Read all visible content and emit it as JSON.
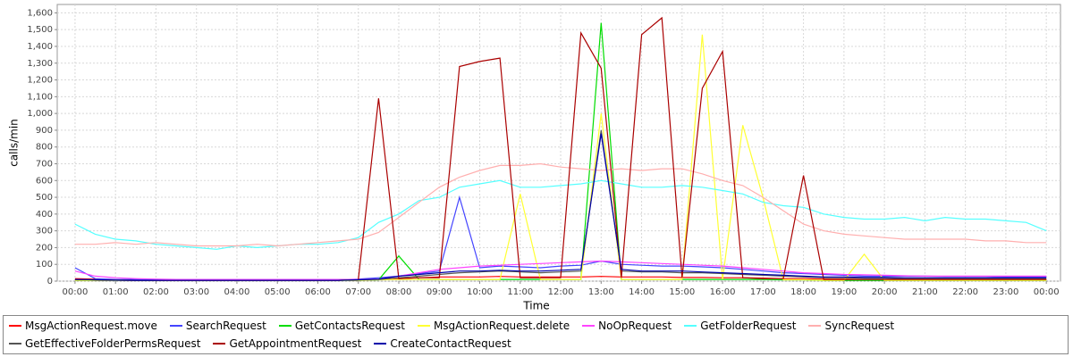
{
  "chart_data": {
    "type": "line",
    "x_label": "Time",
    "y_label": "calls/min",
    "x": [
      0,
      0.5,
      1,
      1.5,
      2,
      2.5,
      3,
      3.5,
      4,
      4.5,
      5,
      5.5,
      6,
      6.5,
      7,
      7.5,
      8,
      8.5,
      9,
      9.5,
      10,
      10.5,
      11,
      11.5,
      12,
      12.5,
      13,
      13.5,
      14,
      14.5,
      15,
      15.5,
      16,
      16.5,
      17,
      17.5,
      18,
      18.5,
      19,
      19.5,
      20,
      20.5,
      21,
      21.5,
      22,
      22.5,
      23,
      23.5,
      24
    ],
    "xlim": [
      -0.44,
      24.35
    ],
    "xticks": [
      {
        "value": 0,
        "label": "00:00"
      },
      {
        "value": 1,
        "label": "01:00"
      },
      {
        "value": 2,
        "label": "02:00"
      },
      {
        "value": 3,
        "label": "03:00"
      },
      {
        "value": 4,
        "label": "04:00"
      },
      {
        "value": 5,
        "label": "05:00"
      },
      {
        "value": 6,
        "label": "06:00"
      },
      {
        "value": 7,
        "label": "07:00"
      },
      {
        "value": 8,
        "label": "08:00"
      },
      {
        "value": 9,
        "label": "09:00"
      },
      {
        "value": 10,
        "label": "10:00"
      },
      {
        "value": 11,
        "label": "11:00"
      },
      {
        "value": 12,
        "label": "12:00"
      },
      {
        "value": 13,
        "label": "13:00"
      },
      {
        "value": 14,
        "label": "14:00"
      },
      {
        "value": 15,
        "label": "15:00"
      },
      {
        "value": 16,
        "label": "16:00"
      },
      {
        "value": 17,
        "label": "17:00"
      },
      {
        "value": 18,
        "label": "18:00"
      },
      {
        "value": 19,
        "label": "19:00"
      },
      {
        "value": 20,
        "label": "20:00"
      },
      {
        "value": 21,
        "label": "21:00"
      },
      {
        "value": 22,
        "label": "22:00"
      },
      {
        "value": 23,
        "label": "23:00"
      },
      {
        "value": 24,
        "label": "00:00"
      }
    ],
    "ylim": [
      0,
      1650
    ],
    "yticks": [
      0,
      100,
      200,
      300,
      400,
      500,
      600,
      700,
      800,
      900,
      {
        "value": 1000,
        "label": "1,000"
      },
      {
        "value": 1100,
        "label": "1,100"
      },
      {
        "value": 1200,
        "label": "1,200"
      },
      {
        "value": 1300,
        "label": "1,300"
      },
      {
        "value": 1400,
        "label": "1,400"
      },
      {
        "value": 1500,
        "label": "1,500"
      },
      {
        "value": 1600,
        "label": "1,600"
      }
    ],
    "grid": true,
    "legend": "bottom",
    "series": [
      {
        "name": "MsgActionRequest.move",
        "color": "#ff0000",
        "values": [
          15,
          12,
          10,
          8,
          8,
          7,
          6,
          6,
          6,
          6,
          5,
          5,
          6,
          6,
          8,
          10,
          15,
          20,
          25,
          25,
          25,
          28,
          25,
          25,
          25,
          25,
          28,
          25,
          25,
          25,
          22,
          22,
          20,
          20,
          18,
          15,
          15,
          12,
          12,
          10,
          10,
          10,
          10,
          10,
          10,
          10,
          10,
          10,
          10
        ]
      },
      {
        "name": "SearchRequest",
        "color": "#4444ff",
        "values": [
          80,
          15,
          10,
          10,
          8,
          8,
          8,
          8,
          8,
          8,
          8,
          8,
          8,
          8,
          12,
          20,
          30,
          45,
          60,
          500,
          80,
          90,
          85,
          80,
          90,
          95,
          120,
          100,
          95,
          90,
          90,
          85,
          80,
          70,
          60,
          50,
          45,
          40,
          35,
          30,
          30,
          30,
          30,
          28,
          28,
          28,
          25,
          25,
          25
        ]
      },
      {
        "name": "GetContactsRequest",
        "color": "#00dd00",
        "values": [
          5,
          5,
          5,
          5,
          5,
          5,
          5,
          5,
          5,
          5,
          5,
          5,
          5,
          5,
          5,
          8,
          150,
          10,
          10,
          10,
          10,
          10,
          10,
          10,
          10,
          10,
          1540,
          10,
          10,
          10,
          10,
          10,
          10,
          10,
          10,
          8,
          8,
          5,
          5,
          5,
          5,
          5,
          5,
          5,
          5,
          5,
          5,
          5,
          5
        ]
      },
      {
        "name": "MsgActionRequest.delete",
        "color": "#ffff33",
        "values": [
          5,
          5,
          5,
          5,
          5,
          5,
          5,
          5,
          5,
          5,
          5,
          5,
          5,
          5,
          5,
          8,
          10,
          10,
          10,
          10,
          10,
          10,
          520,
          10,
          10,
          10,
          1000,
          10,
          10,
          10,
          10,
          1470,
          10,
          930,
          500,
          8,
          8,
          5,
          5,
          160,
          5,
          5,
          5,
          5,
          5,
          5,
          5,
          5,
          5
        ]
      },
      {
        "name": "NoOpRequest",
        "color": "#ff44ff",
        "values": [
          60,
          30,
          20,
          15,
          12,
          10,
          10,
          10,
          10,
          10,
          10,
          10,
          10,
          10,
          10,
          12,
          30,
          50,
          70,
          80,
          90,
          95,
          100,
          105,
          110,
          115,
          120,
          115,
          110,
          105,
          100,
          95,
          90,
          80,
          70,
          60,
          50,
          45,
          40,
          38,
          35,
          32,
          30,
          30,
          30,
          30,
          30,
          30,
          30
        ]
      },
      {
        "name": "GetFolderRequest",
        "color": "#55ffff",
        "values": [
          340,
          280,
          250,
          240,
          220,
          210,
          200,
          190,
          210,
          200,
          210,
          220,
          220,
          230,
          260,
          350,
          400,
          480,
          500,
          560,
          580,
          600,
          560,
          560,
          570,
          580,
          600,
          580,
          560,
          560,
          570,
          560,
          540,
          520,
          470,
          450,
          440,
          400,
          380,
          370,
          370,
          380,
          360,
          380,
          370,
          370,
          360,
          350,
          300
        ]
      },
      {
        "name": "SyncRequest",
        "color": "#ffafaf",
        "values": [
          220,
          220,
          230,
          220,
          230,
          220,
          210,
          210,
          210,
          220,
          210,
          220,
          230,
          240,
          250,
          290,
          380,
          470,
          560,
          620,
          660,
          690,
          690,
          700,
          680,
          670,
          660,
          670,
          660,
          670,
          670,
          640,
          600,
          570,
          500,
          420,
          340,
          300,
          280,
          270,
          260,
          250,
          250,
          250,
          250,
          240,
          240,
          230,
          230
        ]
      },
      {
        "name": "GetEffectiveFolderPermsRequest",
        "color": "#555555",
        "values": [
          10,
          8,
          6,
          5,
          5,
          5,
          5,
          5,
          5,
          5,
          5,
          5,
          5,
          5,
          8,
          10,
          20,
          30,
          40,
          50,
          55,
          60,
          55,
          50,
          55,
          60,
          900,
          60,
          55,
          55,
          50,
          50,
          45,
          40,
          35,
          30,
          25,
          20,
          20,
          18,
          18,
          15,
          15,
          15,
          15,
          15,
          15,
          15,
          15
        ]
      },
      {
        "name": "GetAppointmentRequest",
        "color": "#aa0000",
        "values": [
          10,
          8,
          6,
          5,
          5,
          5,
          5,
          5,
          5,
          5,
          5,
          5,
          5,
          5,
          8,
          1090,
          15,
          20,
          20,
          1280,
          1310,
          1330,
          20,
          20,
          20,
          1480,
          1270,
          20,
          1470,
          1570,
          20,
          1150,
          1370,
          20,
          15,
          15,
          630,
          10,
          10,
          10,
          10,
          10,
          10,
          10,
          10,
          10,
          10,
          10,
          10
        ]
      },
      {
        "name": "CreateContactRequest",
        "color": "#0000aa",
        "values": [
          10,
          8,
          6,
          5,
          5,
          5,
          5,
          5,
          5,
          5,
          5,
          5,
          5,
          5,
          8,
          12,
          30,
          40,
          50,
          60,
          60,
          65,
          60,
          60,
          65,
          70,
          880,
          70,
          60,
          60,
          60,
          55,
          50,
          45,
          40,
          35,
          30,
          25,
          25,
          22,
          22,
          20,
          20,
          20,
          20,
          20,
          20,
          20,
          20
        ]
      }
    ]
  }
}
